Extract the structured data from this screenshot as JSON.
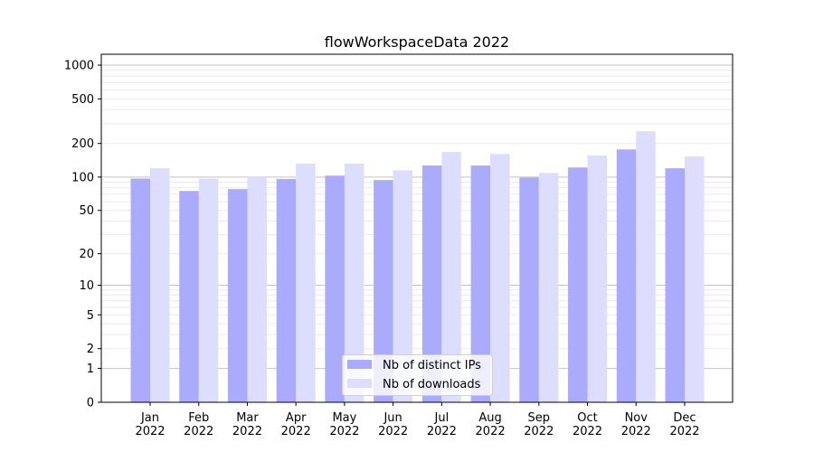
{
  "chart_data": {
    "type": "bar",
    "title": "flowWorkspaceData 2022",
    "xlabel": "",
    "ylabel": "",
    "yscale": "symlog",
    "ylim": [
      0,
      1250
    ],
    "yticks": [
      0,
      1,
      2,
      5,
      10,
      20,
      50,
      100,
      200,
      500,
      1000
    ],
    "grid": true,
    "legend_position": "lower-center",
    "categories": [
      "Jan\n2022",
      "Feb\n2022",
      "Mar\n2022",
      "Apr\n2022",
      "May\n2022",
      "Jun\n2022",
      "Jul\n2022",
      "Aug\n2022",
      "Sep\n2022",
      "Oct\n2022",
      "Nov\n2022",
      "Dec\n2022"
    ],
    "series": [
      {
        "name": "Nb of distinct IPs",
        "color": "#aaaaff",
        "values": [
          97,
          75,
          78,
          96,
          103,
          94,
          127,
          127,
          99,
          122,
          177,
          120
        ]
      },
      {
        "name": "Nb of downloads",
        "color": "#ddddff",
        "values": [
          120,
          97,
          100,
          132,
          132,
          115,
          168,
          161,
          109,
          156,
          257,
          153
        ]
      }
    ]
  }
}
